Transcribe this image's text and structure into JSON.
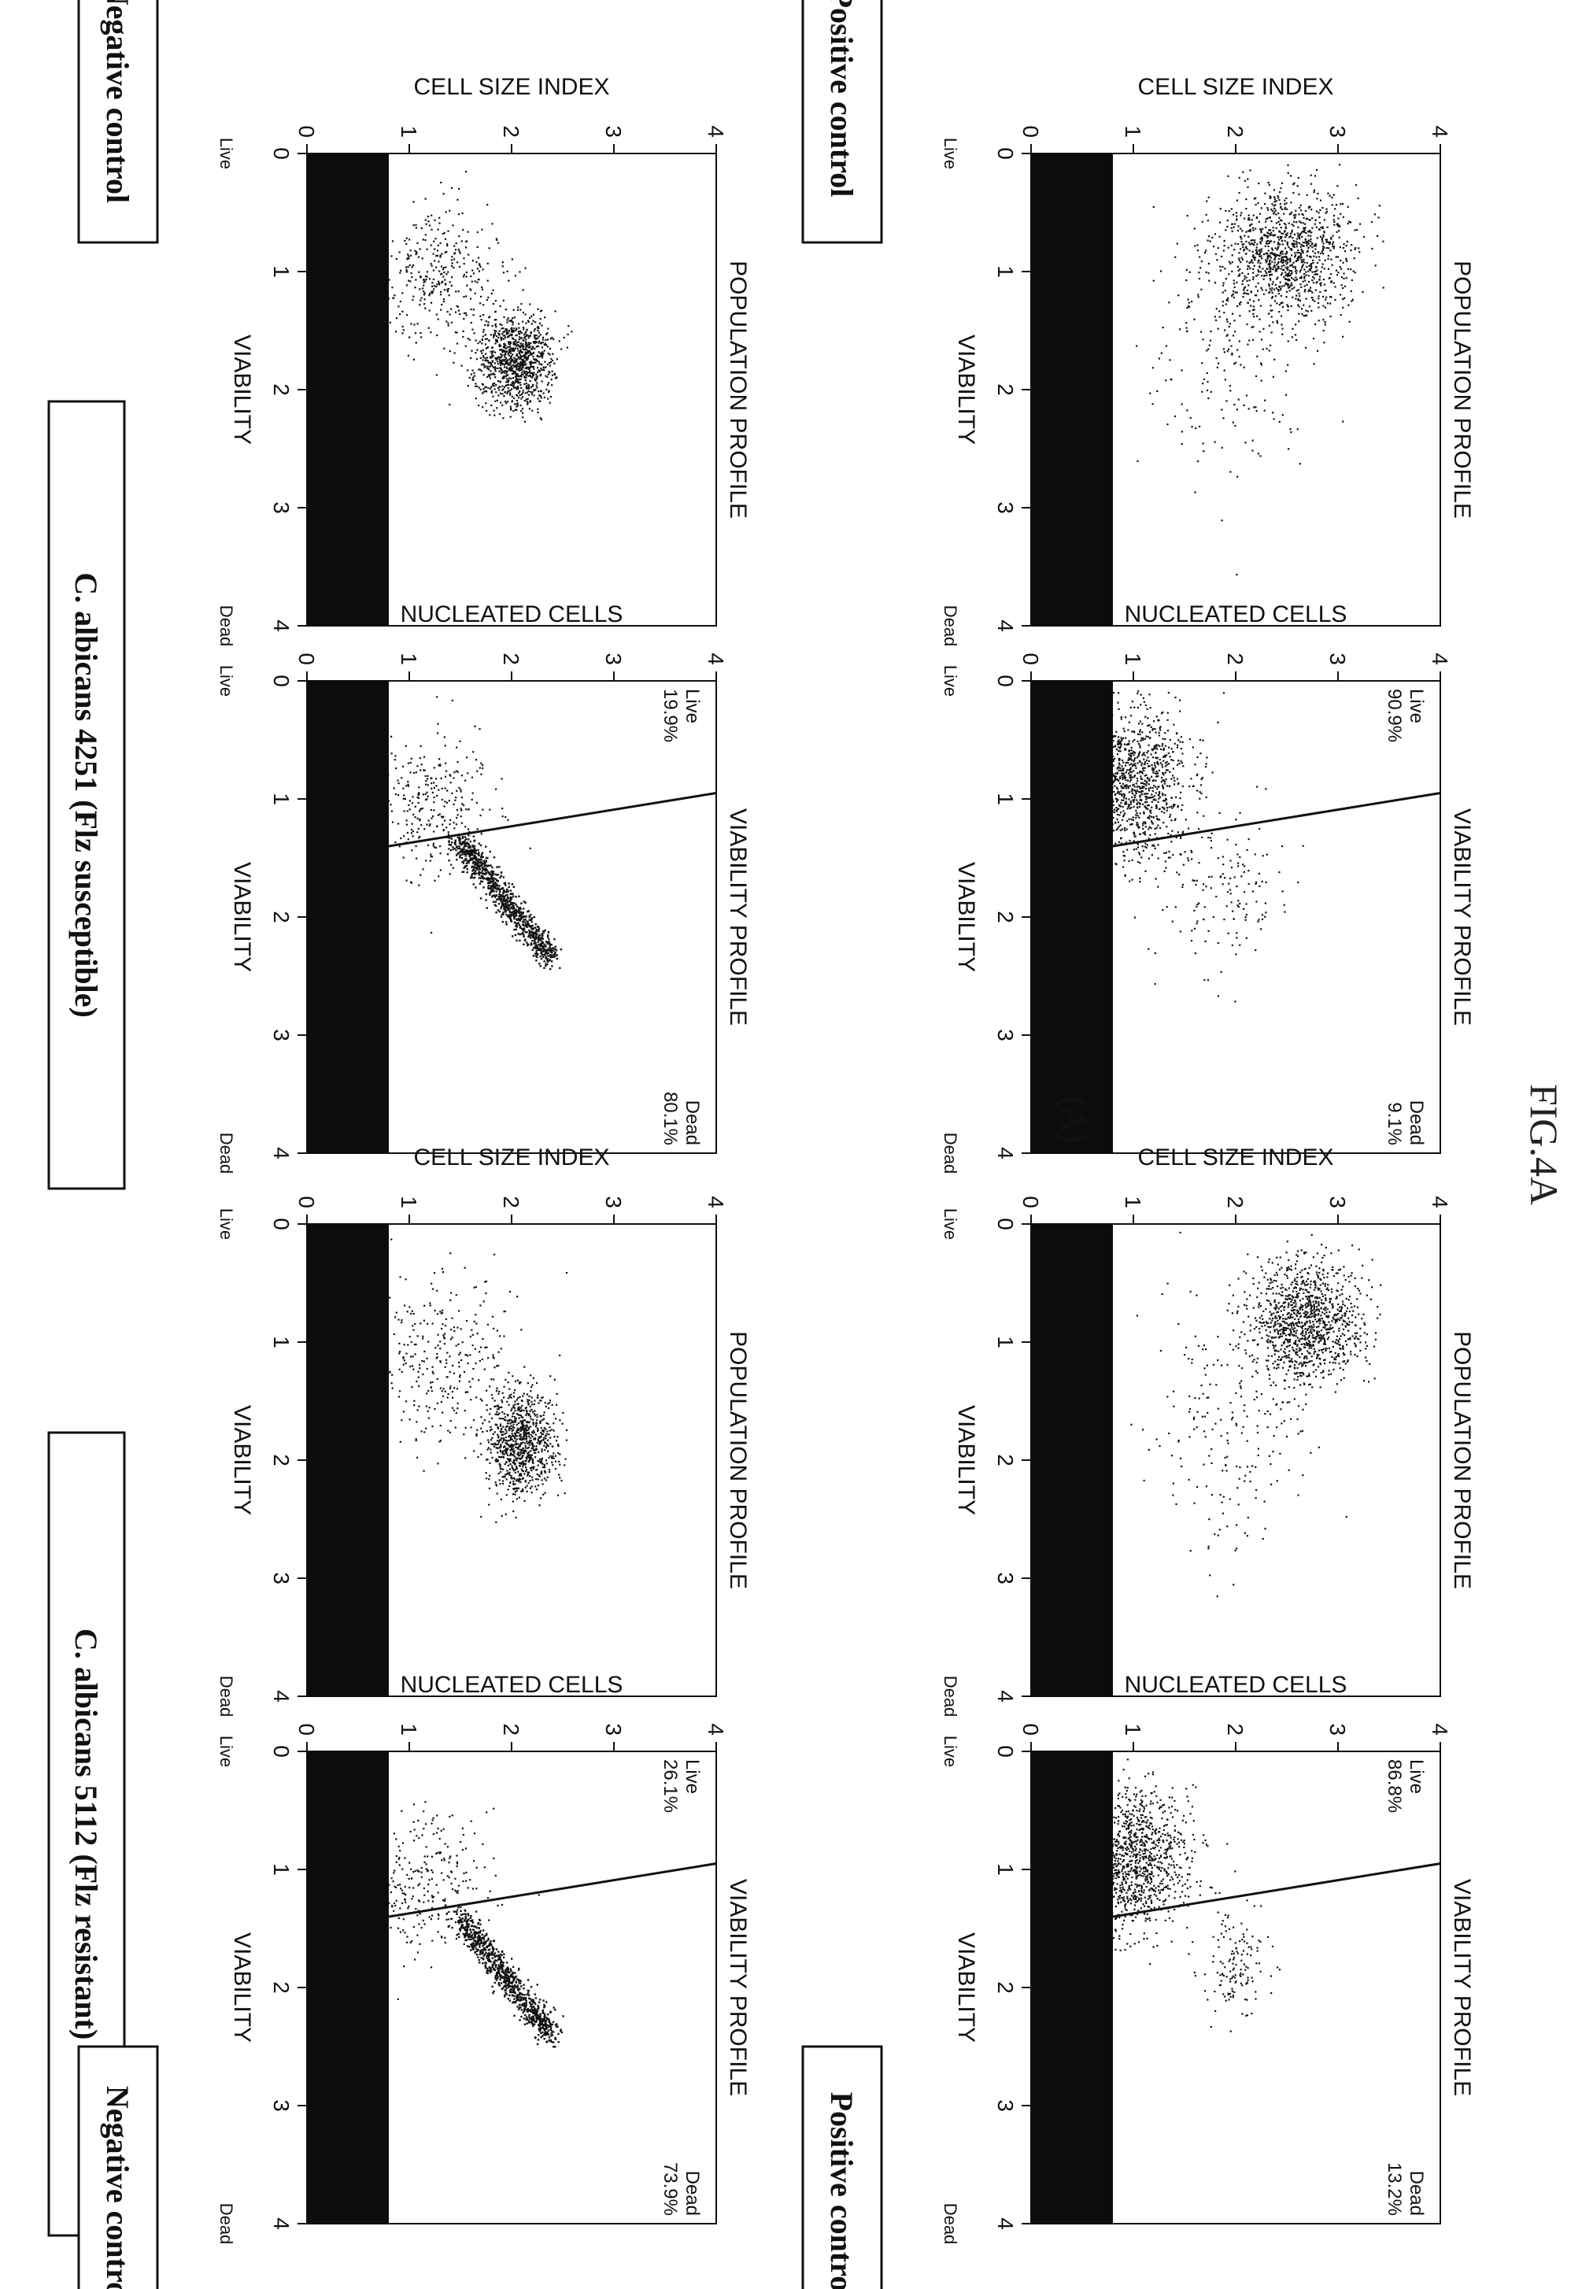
{
  "figure": {
    "panel_label": "(A)",
    "fig_label": "FIG.4A",
    "strains": [
      "C. albicans 4251 (Flz susceptible)",
      "C. albicans 5112 (Flz resistant)"
    ],
    "row_labels": [
      "Negative control",
      "Positive control"
    ]
  },
  "chart_data": [
    {
      "type": "scatter",
      "title": "POPULATION PROFILE",
      "xlabel": "VIABILITY",
      "ylabel": "CELL SIZE INDEX",
      "xlim": [
        0,
        4
      ],
      "ylim": [
        0,
        4
      ],
      "xticks": [
        "0",
        "1",
        "2",
        "3",
        "4"
      ],
      "yticks": [
        "0",
        "1",
        "2",
        "3",
        "4"
      ],
      "x_end_labels": [
        "Live",
        "Dead"
      ],
      "strain": "C. albicans 4251 (Flz susceptible)",
      "condition": "Negative control",
      "debris_threshold": 0.8,
      "clusters": [
        {
          "cx": 0.85,
          "cy": 2.5,
          "sx": 0.28,
          "sy": 0.32,
          "n": 1100
        },
        {
          "cx": 1.6,
          "cy": 1.9,
          "sx": 0.55,
          "sy": 0.35,
          "n": 220
        }
      ]
    },
    {
      "type": "scatter",
      "title": "VIABILITY PROFILE",
      "xlabel": "VIABILITY",
      "ylabel": "NUCLEATED CELLS",
      "xlim": [
        0,
        4
      ],
      "ylim": [
        0,
        4
      ],
      "xticks": [
        "0",
        "1",
        "2",
        "3",
        "4"
      ],
      "yticks": [
        "0",
        "1",
        "2",
        "3",
        "4"
      ],
      "x_end_labels": [
        "Live",
        "Dead"
      ],
      "strain": "C. albicans 4251 (Flz susceptible)",
      "condition": "Negative control",
      "debris_threshold": 0.8,
      "live_label": "Live",
      "live_pct": "90.9%",
      "dead_label": "Dead",
      "dead_pct": "9.1%",
      "gate": [
        [
          0.95,
          4
        ],
        [
          1.4,
          0.8
        ]
      ],
      "clusters": [
        {
          "cx": 0.85,
          "cy": 1.0,
          "sx": 0.32,
          "sy": 0.28,
          "n": 1100
        },
        {
          "cx": 1.75,
          "cy": 1.9,
          "sx": 0.35,
          "sy": 0.3,
          "n": 150
        }
      ]
    },
    {
      "type": "scatter",
      "title": "POPULATION PROFILE",
      "xlabel": "VIABILITY",
      "ylabel": "CELL SIZE INDEX",
      "xlim": [
        0,
        4
      ],
      "ylim": [
        0,
        4
      ],
      "xticks": [
        "0",
        "1",
        "2",
        "3",
        "4"
      ],
      "yticks": [
        "0",
        "1",
        "2",
        "3",
        "4"
      ],
      "x_end_labels": [
        "Live",
        "Dead"
      ],
      "strain": "C. albicans 5112 (Flz resistant)",
      "condition": "Negative control",
      "debris_threshold": 0.8,
      "clusters": [
        {
          "cx": 0.82,
          "cy": 2.7,
          "sx": 0.25,
          "sy": 0.28,
          "n": 1100
        },
        {
          "cx": 1.6,
          "cy": 2.0,
          "sx": 0.55,
          "sy": 0.4,
          "n": 230
        }
      ]
    },
    {
      "type": "scatter",
      "title": "VIABILITY PROFILE",
      "xlabel": "VIABILITY",
      "ylabel": "NUCLEATED CELLS",
      "xlim": [
        0,
        4
      ],
      "ylim": [
        0,
        4
      ],
      "xticks": [
        "0",
        "1",
        "2",
        "3",
        "4"
      ],
      "yticks": [
        "0",
        "1",
        "2",
        "3",
        "4"
      ],
      "x_end_labels": [
        "Live",
        "Dead"
      ],
      "strain": "C. albicans 5112 (Flz resistant)",
      "condition": "Negative control",
      "debris_threshold": 0.8,
      "live_label": "Live",
      "live_pct": "86.8%",
      "dead_label": "Dead",
      "dead_pct": "13.2%",
      "gate": [
        [
          0.95,
          4
        ],
        [
          1.4,
          0.8
        ]
      ],
      "clusters": [
        {
          "cx": 0.9,
          "cy": 1.0,
          "sx": 0.3,
          "sy": 0.28,
          "n": 1150
        },
        {
          "cx": 1.8,
          "cy": 2.0,
          "sx": 0.22,
          "sy": 0.16,
          "n": 140
        }
      ]
    },
    {
      "type": "scatter",
      "title": "POPULATION PROFILE",
      "xlabel": "VIABILITY",
      "ylabel": "CELL SIZE INDEX",
      "xlim": [
        0,
        4
      ],
      "ylim": [
        0,
        4
      ],
      "xticks": [
        "0",
        "1",
        "2",
        "3",
        "4"
      ],
      "yticks": [
        "0",
        "1",
        "2",
        "3",
        "4"
      ],
      "x_end_labels": [
        "Live",
        "Dead"
      ],
      "strain": "C. albicans 4251 (Flz susceptible)",
      "condition": "Positive control",
      "debris_threshold": 0.8,
      "clusters": [
        {
          "cx": 1.75,
          "cy": 2.05,
          "sx": 0.2,
          "sy": 0.18,
          "n": 1000
        },
        {
          "cx": 1.05,
          "cy": 1.3,
          "sx": 0.3,
          "sy": 0.3,
          "n": 350
        }
      ]
    },
    {
      "type": "scatter",
      "title": "VIABILITY PROFILE",
      "xlabel": "VIABILITY",
      "ylabel": "NUCLEATED CELLS",
      "xlim": [
        0,
        4
      ],
      "ylim": [
        0,
        4
      ],
      "xticks": [
        "0",
        "1",
        "2",
        "3",
        "4"
      ],
      "yticks": [
        "0",
        "1",
        "2",
        "3",
        "4"
      ],
      "x_end_labels": [
        "Live",
        "Dead"
      ],
      "strain": "C. albicans 4251 (Flz susceptible)",
      "condition": "Positive control",
      "debris_threshold": 0.8,
      "live_label": "Live",
      "live_pct": "19.9%",
      "dead_label": "Dead",
      "dead_pct": "80.1%",
      "gate": [
        [
          0.95,
          4
        ],
        [
          1.4,
          0.8
        ]
      ],
      "clusters": [
        {
          "cx": 1.05,
          "cy": 1.2,
          "sx": 0.3,
          "sy": 0.3,
          "n": 300
        }
      ],
      "diagonal": {
        "x0": 1.35,
        "y0": 1.5,
        "x1": 2.35,
        "y1": 2.4,
        "n": 900
      }
    },
    {
      "type": "scatter",
      "title": "POPULATION PROFILE",
      "xlabel": "VIABILITY",
      "ylabel": "CELL SIZE INDEX",
      "xlim": [
        0,
        4
      ],
      "ylim": [
        0,
        4
      ],
      "xticks": [
        "0",
        "1",
        "2",
        "3",
        "4"
      ],
      "yticks": [
        "0",
        "1",
        "2",
        "3",
        "4"
      ],
      "x_end_labels": [
        "Live",
        "Dead"
      ],
      "strain": "C. albicans 5112 (Flz resistant)",
      "condition": "Positive control",
      "debris_threshold": 0.8,
      "clusters": [
        {
          "cx": 1.85,
          "cy": 2.1,
          "sx": 0.22,
          "sy": 0.18,
          "n": 900
        },
        {
          "cx": 1.1,
          "cy": 1.3,
          "sx": 0.35,
          "sy": 0.35,
          "n": 300
        }
      ]
    },
    {
      "type": "scatter",
      "title": "VIABILITY PROFILE",
      "xlabel": "VIABILITY",
      "ylabel": "NUCLEATED CELLS",
      "xlim": [
        0,
        4
      ],
      "ylim": [
        0,
        4
      ],
      "xticks": [
        "0",
        "1",
        "2",
        "3",
        "4"
      ],
      "yticks": [
        "0",
        "1",
        "2",
        "3",
        "4"
      ],
      "x_end_labels": [
        "Live",
        "Dead"
      ],
      "strain": "C. albicans 5112 (Flz resistant)",
      "condition": "Positive control",
      "debris_threshold": 0.8,
      "live_label": "Live",
      "live_pct": "26.1%",
      "dead_label": "Dead",
      "dead_pct": "73.9%",
      "gate": [
        [
          0.95,
          4
        ],
        [
          1.4,
          0.8
        ]
      ],
      "clusters": [
        {
          "cx": 1.1,
          "cy": 1.2,
          "sx": 0.3,
          "sy": 0.3,
          "n": 260
        }
      ],
      "diagonal": {
        "x0": 1.4,
        "y0": 1.5,
        "x1": 2.4,
        "y1": 2.4,
        "n": 850
      }
    }
  ]
}
